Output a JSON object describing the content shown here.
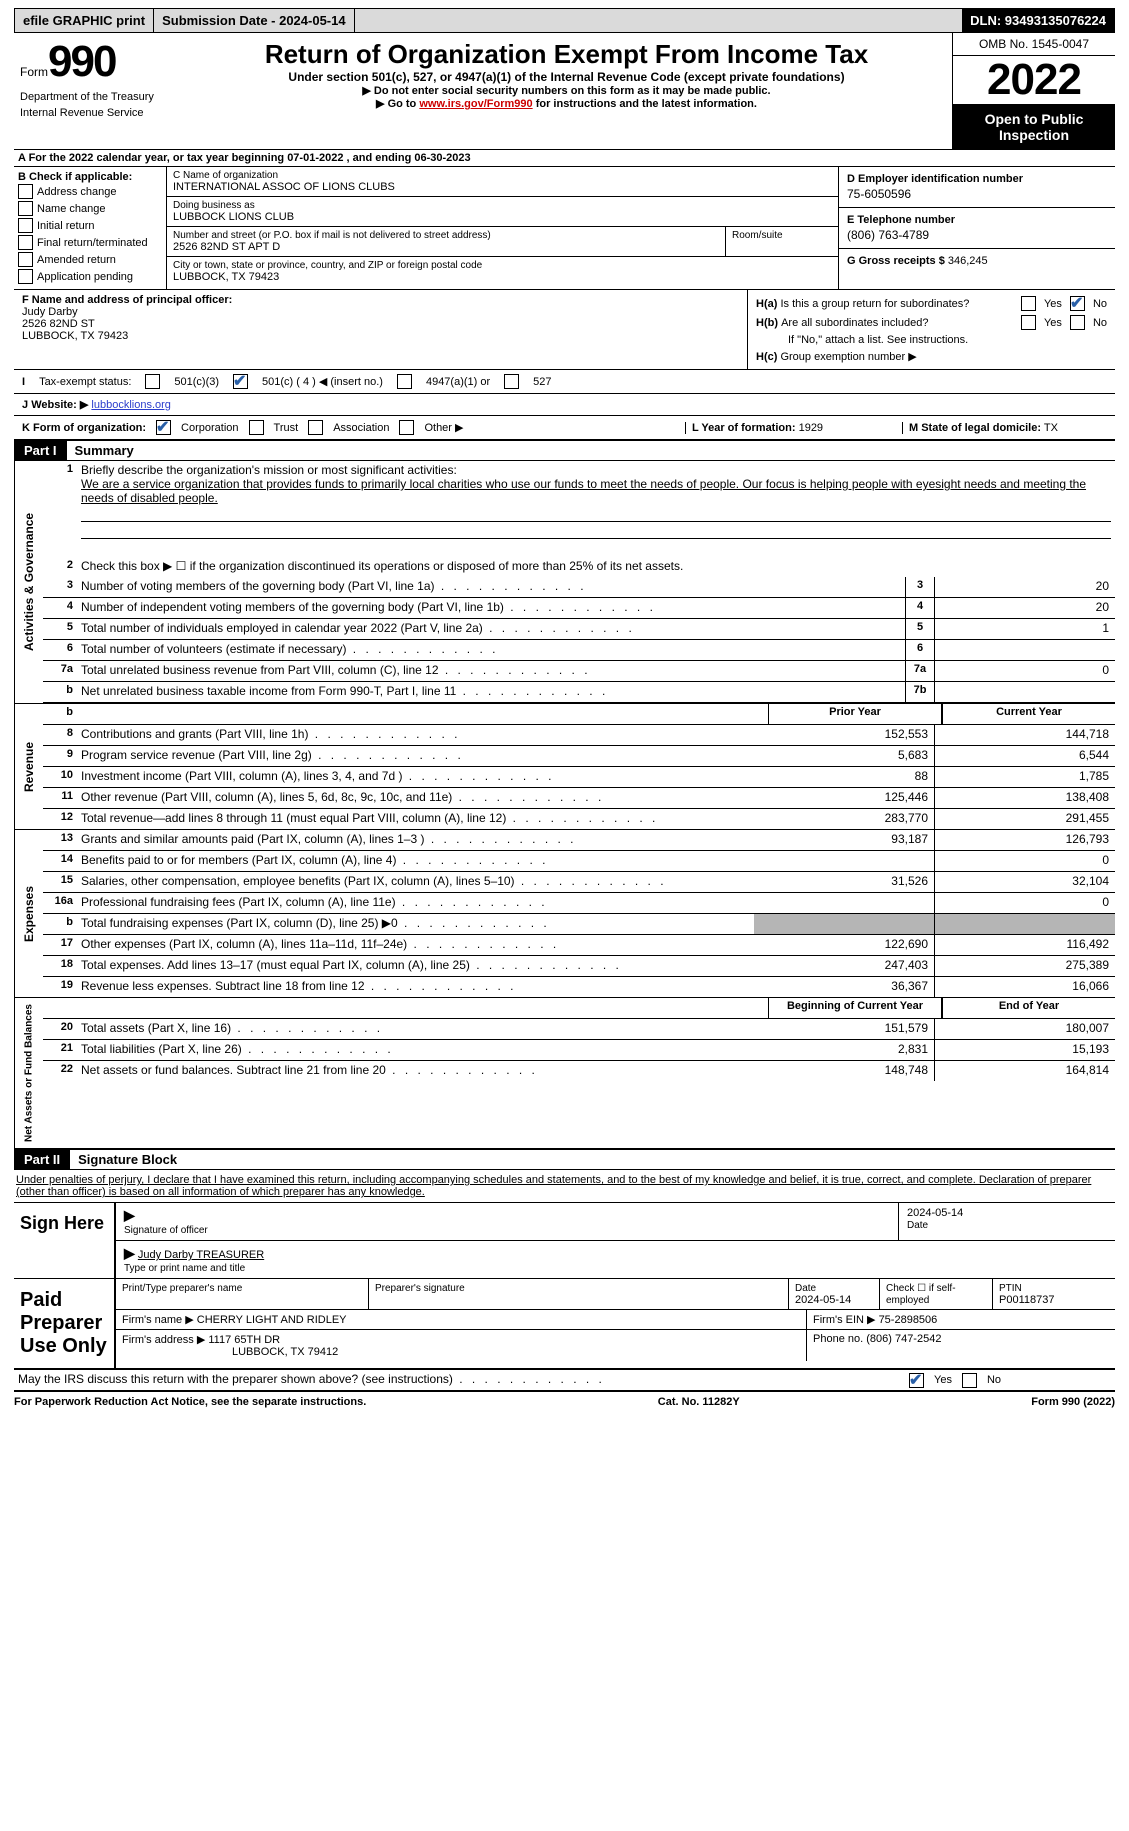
{
  "topbar": {
    "efile": "efile GRAPHIC print",
    "submission": "Submission Date - 2024-05-14",
    "dln": "DLN: 93493135076224"
  },
  "header": {
    "form_label": "Form",
    "form_num": "990",
    "title": "Return of Organization Exempt From Income Tax",
    "subtitle": "Under section 501(c), 527, or 4947(a)(1) of the Internal Revenue Code (except private foundations)",
    "no_ssn": "▶ Do not enter social security numbers on this form as it may be made public.",
    "goto_pre": "▶ Go to ",
    "goto_link": "www.irs.gov/Form990",
    "goto_post": " for instructions and the latest information.",
    "dept": "Department of the Treasury",
    "irs": "Internal Revenue Service",
    "omb": "OMB No. 1545-0047",
    "year": "2022",
    "open": "Open to Public Inspection"
  },
  "periodA": "A For the 2022 calendar year, or tax year beginning 07-01-2022    , and ending 06-30-2023",
  "secB": {
    "label": "B Check if applicable:",
    "opts": [
      "Address change",
      "Name change",
      "Initial return",
      "Final return/terminated",
      "Amended return",
      "Application pending"
    ]
  },
  "secC": {
    "name_label": "C Name of organization",
    "name": "INTERNATIONAL ASSOC OF LIONS CLUBS",
    "dba_label": "Doing business as",
    "dba": "LUBBOCK LIONS CLUB",
    "street_label": "Number and street (or P.O. box if mail is not delivered to street address)",
    "street": "2526 82ND ST APT D",
    "room_label": "Room/suite",
    "city_label": "City or town, state or province, country, and ZIP or foreign postal code",
    "city": "LUBBOCK, TX  79423"
  },
  "secD": {
    "ein_label": "D Employer identification number",
    "ein": "75-6050596",
    "tel_label": "E Telephone number",
    "tel": "(806) 763-4789",
    "gross_label": "G Gross receipts $",
    "gross": "346,245"
  },
  "secF": {
    "label": "F  Name and address of principal officer:",
    "name": "Judy Darby",
    "street": "2526 82ND ST",
    "city": "LUBBOCK, TX  79423"
  },
  "secH": {
    "ha_label": "H(a)",
    "ha_text": "Is this a group return for subordinates?",
    "hb_label": "H(b)",
    "hb_text": "Are all subordinates included?",
    "hb_note": "If \"No,\" attach a list. See instructions.",
    "hc_label": "H(c)",
    "hc_text": "Group exemption number ▶",
    "yes": "Yes",
    "no": "No"
  },
  "secI": {
    "label": "I",
    "text": "Tax-exempt status:",
    "o1": "501(c)(3)",
    "o2": "501(c) ( 4 ) ◀ (insert no.)",
    "o3": "4947(a)(1) or",
    "o4": "527"
  },
  "secJ": {
    "label": "J",
    "text": "Website: ▶",
    "val": "lubbocklions.org"
  },
  "secK": {
    "label": "K Form of organization:",
    "corp": "Corporation",
    "trust": "Trust",
    "assoc": "Association",
    "other": "Other ▶"
  },
  "secL": {
    "label": "L Year of formation:",
    "val": "1929"
  },
  "secM": {
    "label": "M State of legal domicile:",
    "val": "TX"
  },
  "partI": {
    "header": "Part I",
    "title": "Summary",
    "side1": "Activities & Governance",
    "side2": "Revenue",
    "side3": "Expenses",
    "side4": "Net Assets or Fund Balances",
    "q1": "Briefly describe the organization's mission or most significant activities:",
    "mission": "We are a service organization that provides funds to primarily local charities who use our funds to meet the needs of people. Our focus is helping people with eyesight needs and meeting the needs of disabled people.",
    "q2": "Check this box ▶ ☐ if the organization discontinued its operations or disposed of more than 25% of its net assets.",
    "lines_gov": [
      {
        "n": "3",
        "t": "Number of voting members of the governing body (Part VI, line 1a)",
        "box": "3",
        "v": "20"
      },
      {
        "n": "4",
        "t": "Number of independent voting members of the governing body (Part VI, line 1b)",
        "box": "4",
        "v": "20"
      },
      {
        "n": "5",
        "t": "Total number of individuals employed in calendar year 2022 (Part V, line 2a)",
        "box": "5",
        "v": "1"
      },
      {
        "n": "6",
        "t": "Total number of volunteers (estimate if necessary)",
        "box": "6",
        "v": ""
      },
      {
        "n": "7a",
        "t": "Total unrelated business revenue from Part VIII, column (C), line 12",
        "box": "7a",
        "v": "0"
      },
      {
        "n": "b",
        "t": "Net unrelated business taxable income from Form 990-T, Part I, line 11",
        "box": "7b",
        "v": ""
      }
    ],
    "prior_head": "Prior Year",
    "curr_head": "Current Year",
    "lines_rev": [
      {
        "n": "8",
        "t": "Contributions and grants (Part VIII, line 1h)",
        "p": "152,553",
        "c": "144,718"
      },
      {
        "n": "9",
        "t": "Program service revenue (Part VIII, line 2g)",
        "p": "5,683",
        "c": "6,544"
      },
      {
        "n": "10",
        "t": "Investment income (Part VIII, column (A), lines 3, 4, and 7d )",
        "p": "88",
        "c": "1,785"
      },
      {
        "n": "11",
        "t": "Other revenue (Part VIII, column (A), lines 5, 6d, 8c, 9c, 10c, and 11e)",
        "p": "125,446",
        "c": "138,408"
      },
      {
        "n": "12",
        "t": "Total revenue—add lines 8 through 11 (must equal Part VIII, column (A), line 12)",
        "p": "283,770",
        "c": "291,455"
      }
    ],
    "lines_exp": [
      {
        "n": "13",
        "t": "Grants and similar amounts paid (Part IX, column (A), lines 1–3 )",
        "p": "93,187",
        "c": "126,793"
      },
      {
        "n": "14",
        "t": "Benefits paid to or for members (Part IX, column (A), line 4)",
        "p": "",
        "c": "0"
      },
      {
        "n": "15",
        "t": "Salaries, other compensation, employee benefits (Part IX, column (A), lines 5–10)",
        "p": "31,526",
        "c": "32,104"
      },
      {
        "n": "16a",
        "t": "Professional fundraising fees (Part IX, column (A), line 11e)",
        "p": "",
        "c": "0"
      },
      {
        "n": "b",
        "t": "Total fundraising expenses (Part IX, column (D), line 25) ▶0",
        "p": "GREY",
        "c": "GREY"
      },
      {
        "n": "17",
        "t": "Other expenses (Part IX, column (A), lines 11a–11d, 11f–24e)",
        "p": "122,690",
        "c": "116,492"
      },
      {
        "n": "18",
        "t": "Total expenses. Add lines 13–17 (must equal Part IX, column (A), line 25)",
        "p": "247,403",
        "c": "275,389"
      },
      {
        "n": "19",
        "t": "Revenue less expenses. Subtract line 18 from line 12",
        "p": "36,367",
        "c": "16,066"
      }
    ],
    "boy_head": "Beginning of Current Year",
    "eoy_head": "End of Year",
    "lines_net": [
      {
        "n": "20",
        "t": "Total assets (Part X, line 16)",
        "p": "151,579",
        "c": "180,007"
      },
      {
        "n": "21",
        "t": "Total liabilities (Part X, line 26)",
        "p": "2,831",
        "c": "15,193"
      },
      {
        "n": "22",
        "t": "Net assets or fund balances. Subtract line 21 from line 20",
        "p": "148,748",
        "c": "164,814"
      }
    ]
  },
  "partII": {
    "header": "Part II",
    "title": "Signature Block",
    "perjury": "Under penalties of perjury, I declare that I have examined this return, including accompanying schedules and statements, and to the best of my knowledge and belief, it is true, correct, and complete. Declaration of preparer (other than officer) is based on all information of which preparer has any knowledge.",
    "sign_here": "Sign Here",
    "sig_of_officer": "Signature of officer",
    "date_val": "2024-05-14",
    "date": "Date",
    "officer_name": "Judy Darby TREASURER",
    "type_name": "Type or print name and title",
    "paid_prep": "Paid Preparer Use Only",
    "print_name_label": "Print/Type preparer's name",
    "prep_sig_label": "Preparer's signature",
    "prep_date_label": "Date",
    "prep_date": "2024-05-14",
    "self_emp": "Check ☐ if self-employed",
    "ptin_label": "PTIN",
    "ptin": "P00118737",
    "firm_name_label": "Firm's name      ▶",
    "firm_name": "CHERRY LIGHT AND RIDLEY",
    "firm_ein_label": "Firm's EIN ▶",
    "firm_ein": "75-2898506",
    "firm_addr_label": "Firm's address ▶",
    "firm_addr1": "1117 65TH DR",
    "firm_addr2": "LUBBOCK, TX  79412",
    "firm_phone_label": "Phone no.",
    "firm_phone": "(806) 747-2542"
  },
  "discuss": "May the IRS discuss this return with the preparer shown above? (see instructions)",
  "footer": {
    "left": "For Paperwork Reduction Act Notice, see the separate instructions.",
    "mid": "Cat. No. 11282Y",
    "right": "Form 990 (2022)"
  }
}
